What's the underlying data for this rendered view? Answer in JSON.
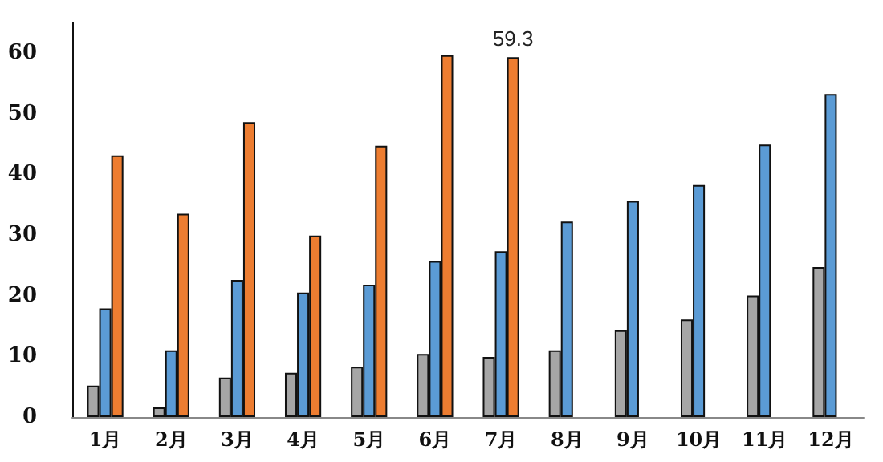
{
  "chart_data": {
    "type": "bar",
    "categories": [
      "1月",
      "2月",
      "3月",
      "4月",
      "5月",
      "6月",
      "7月",
      "8月",
      "9月",
      "10月",
      "11月",
      "12月"
    ],
    "series": [
      {
        "color": "#a6a6a6",
        "values": [
          5.2,
          1.6,
          6.5,
          7.3,
          8.3,
          10.4,
          9.9,
          11.0,
          14.3,
          16.1,
          20.0,
          24.7
        ]
      },
      {
        "color": "#5b9bd5",
        "values": [
          17.9,
          11.0,
          22.6,
          20.5,
          21.8,
          25.7,
          27.3,
          32.2,
          35.6,
          38.2,
          44.9,
          53.2
        ]
      },
      {
        "color": "#ed7d31",
        "values": [
          43.1,
          33.5,
          48.6,
          29.9,
          44.7,
          59.6,
          59.3,
          null,
          null,
          null,
          null,
          null
        ],
        "value_labels": [
          null,
          null,
          null,
          null,
          null,
          null,
          "59.3",
          null,
          null,
          null,
          null,
          null
        ]
      }
    ],
    "ylim": [
      0,
      65
    ],
    "yticks": [
      0,
      10,
      20,
      30,
      40,
      50,
      60
    ],
    "grid": false
  }
}
